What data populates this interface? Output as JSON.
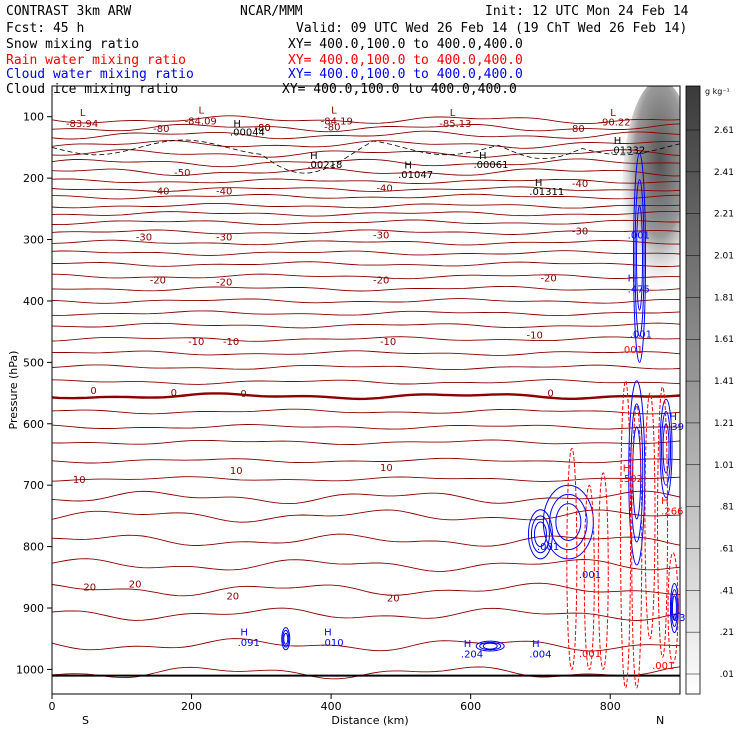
{
  "header": {
    "product": "CONTRAST  3km ARW",
    "source": "NCAR/MMM",
    "init": "Init: 12 UTC Mon 24 Feb 14",
    "fcst": "Fcst:   45 h",
    "valid": "Valid: 09 UTC Wed 26 Feb 14 (19 ChT Wed 26 Feb 14)",
    "fields": [
      {
        "name": "Snow mixing ratio",
        "xy": "XY= 400.0,100.0 to 400.0,400.0",
        "color": "#000000"
      },
      {
        "name": "Rain water mixing ratio",
        "xy": "XY= 400.0,100.0 to 400.0,400.0",
        "color": "#ff0000"
      },
      {
        "name": "Cloud water mixing ratio",
        "xy": "XY= 400.0,100.0 to 400.0,400.0",
        "color": "#0000ff"
      },
      {
        "name": "Cloud ice mixing ratio",
        "xy": "XY= 400.0,100.0 to 400.0,400.0",
        "color": "#000000"
      }
    ]
  },
  "chart_data": {
    "type": "contour-cross-section",
    "xlabel": "Distance (km)",
    "ylabel": "Pressure (hPa)",
    "xlim": [
      0,
      900
    ],
    "ylim": [
      1040,
      50
    ],
    "xticks": [
      0,
      200,
      400,
      600,
      800
    ],
    "yticks": [
      100,
      200,
      300,
      400,
      500,
      600,
      700,
      800,
      900,
      1000
    ],
    "endpoints": {
      "left": "S",
      "right": "N"
    },
    "colorbar": {
      "unit": "g kg⁻¹",
      "levels": [
        "2.61",
        "2.41",
        "2.21",
        "2.01",
        "1.81",
        "1.61",
        "1.41",
        "1.21",
        "1.01",
        ".81",
        ".61",
        ".41",
        ".21",
        ".01"
      ]
    },
    "temperature_contours": {
      "color": "#8b0000",
      "freezing_level_hPa": 555,
      "levels_hPa": [
        105,
        118,
        130,
        145,
        160,
        175,
        190,
        205,
        218,
        230,
        245,
        258,
        272,
        288,
        305,
        322,
        340,
        360,
        380,
        400,
        420,
        440,
        462,
        485,
        508,
        532,
        580,
        605,
        630,
        660,
        690,
        720,
        750,
        790,
        830,
        870,
        910,
        960,
        1005
      ],
      "labels": [
        {
          "text": "-80",
          "x": 145,
          "p": 118
        },
        {
          "text": "-80",
          "x": 390,
          "p": 116
        },
        {
          "text": "-80",
          "x": 290,
          "p": 117
        },
        {
          "text": "-80",
          "x": 740,
          "p": 118
        },
        {
          "text": "-80",
          "x": 290,
          "p": 117
        },
        {
          "text": "-50",
          "x": 175,
          "p": 190
        },
        {
          "text": "-40",
          "x": 145,
          "p": 220
        },
        {
          "text": "-40",
          "x": 235,
          "p": 220
        },
        {
          "text": "-40",
          "x": 465,
          "p": 215
        },
        {
          "text": "-40",
          "x": 745,
          "p": 208
        },
        {
          "text": "-30",
          "x": 120,
          "p": 295
        },
        {
          "text": "-30",
          "x": 235,
          "p": 295
        },
        {
          "text": "-30",
          "x": 460,
          "p": 292
        },
        {
          "text": "-30",
          "x": 745,
          "p": 285
        },
        {
          "text": "-20",
          "x": 140,
          "p": 365
        },
        {
          "text": "-20",
          "x": 235,
          "p": 368
        },
        {
          "text": "-20",
          "x": 460,
          "p": 365
        },
        {
          "text": "-20",
          "x": 700,
          "p": 362
        },
        {
          "text": "-10",
          "x": 195,
          "p": 465
        },
        {
          "text": "-10",
          "x": 245,
          "p": 465
        },
        {
          "text": "-10",
          "x": 470,
          "p": 465
        },
        {
          "text": "-10",
          "x": 680,
          "p": 455
        },
        {
          "text": "0",
          "x": 55,
          "p": 545
        },
        {
          "text": "0",
          "x": 170,
          "p": 548
        },
        {
          "text": "0",
          "x": 270,
          "p": 550
        },
        {
          "text": "0",
          "x": 710,
          "p": 549
        },
        {
          "text": "10",
          "x": 30,
          "p": 690
        },
        {
          "text": "10",
          "x": 255,
          "p": 675
        },
        {
          "text": "10",
          "x": 470,
          "p": 670
        },
        {
          "text": "20",
          "x": 45,
          "p": 865
        },
        {
          "text": "20",
          "x": 110,
          "p": 860
        },
        {
          "text": "20",
          "x": 250,
          "p": 880
        },
        {
          "text": "20",
          "x": 480,
          "p": 883
        }
      ],
      "extrema": [
        {
          "text": "L",
          "x": 40,
          "p": 92
        },
        {
          "text": "-83.94",
          "x": 20,
          "p": 110
        },
        {
          "text": "L",
          "x": 210,
          "p": 88
        },
        {
          "text": "-84.09",
          "x": 190,
          "p": 106
        },
        {
          "text": "L",
          "x": 400,
          "p": 88
        },
        {
          "text": "-84.19",
          "x": 385,
          "p": 106
        },
        {
          "text": "L",
          "x": 570,
          "p": 92
        },
        {
          "text": "-85.13",
          "x": 555,
          "p": 110
        },
        {
          "text": "L",
          "x": 800,
          "p": 92
        },
        {
          "text": "-90.22",
          "x": 783,
          "p": 108
        }
      ]
    },
    "ice_labels": [
      {
        "text": "H",
        "x": 260,
        "p": 110
      },
      {
        "text": ".00044",
        "x": 255,
        "p": 124
      },
      {
        "text": "H",
        "x": 370,
        "p": 162
      },
      {
        "text": ".00218",
        "x": 366,
        "p": 177
      },
      {
        "text": "H",
        "x": 505,
        "p": 178
      },
      {
        "text": ".01047",
        "x": 496,
        "p": 193
      },
      {
        "text": "H",
        "x": 612,
        "p": 162
      },
      {
        "text": ".00061",
        "x": 604,
        "p": 177
      },
      {
        "text": "H",
        "x": 692,
        "p": 206
      },
      {
        "text": ".01311",
        "x": 684,
        "p": 221
      },
      {
        "text": "H",
        "x": 805,
        "p": 138
      },
      {
        "text": ".01332",
        "x": 800,
        "p": 153
      }
    ],
    "cloud_water_labels": [
      {
        "text": ".001",
        "x": 825,
        "p": 292
      },
      {
        "text": "H",
        "x": 825,
        "p": 362
      },
      {
        "text": ".475",
        "x": 825,
        "p": 380
      },
      {
        "text": ".001",
        "x": 828,
        "p": 453
      },
      {
        "text": "H",
        "x": 270,
        "p": 938
      },
      {
        "text": ".091",
        "x": 266,
        "p": 955
      },
      {
        "text": "H",
        "x": 390,
        "p": 938
      },
      {
        "text": ".010",
        "x": 386,
        "p": 955
      },
      {
        "text": "H",
        "x": 590,
        "p": 957
      },
      {
        "text": ".204",
        "x": 586,
        "p": 974
      },
      {
        "text": "H",
        "x": 688,
        "p": 957
      },
      {
        "text": ".004",
        "x": 684,
        "p": 974
      },
      {
        "text": ".001",
        "x": 695,
        "p": 799
      },
      {
        "text": "H",
        "x": 885,
        "p": 587
      },
      {
        "text": ".39",
        "x": 883,
        "p": 604
      },
      {
        "text": ".03",
        "x": 885,
        "p": 915
      },
      {
        "text": ".001",
        "x": 755,
        "p": 845
      }
    ],
    "rain_labels": [
      {
        "text": ".001",
        "x": 815,
        "p": 478
      },
      {
        "text": "H",
        "x": 818,
        "p": 671
      },
      {
        "text": ".502",
        "x": 815,
        "p": 688
      },
      {
        "text": "H",
        "x": 873,
        "p": 724
      },
      {
        "text": ".266",
        "x": 873,
        "p": 741
      },
      {
        "text": ".001",
        "x": 755,
        "p": 973
      },
      {
        "text": ".001",
        "x": 860,
        "p": 993
      }
    ],
    "surface_hPa": 1010
  }
}
